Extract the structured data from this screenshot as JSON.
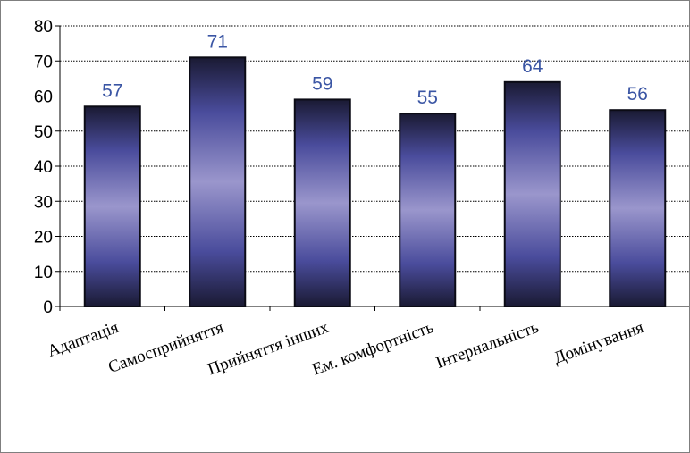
{
  "colors": {
    "bar_dark": "#1a1a33",
    "bar_mid": "#4a4c9c",
    "bar_light": "#9a96cc",
    "bar_edge": "#0b0b15",
    "data_label": "#3a55a4",
    "grid": "#000000",
    "frame_border": "#7f7f7f"
  },
  "chart_data": {
    "type": "bar",
    "categories": [
      "Адаптація",
      "Самосприйняття",
      "Прийняття інших",
      "Ем. комфортність",
      "Інтернальність",
      "Домінування"
    ],
    "values": [
      57,
      71,
      59,
      55,
      64,
      56
    ],
    "data_labels": [
      "57",
      "71",
      "59",
      "55",
      "64",
      "56"
    ],
    "y_ticks": [
      "0",
      "10",
      "20",
      "30",
      "40",
      "50",
      "60",
      "70",
      "80"
    ],
    "ylim": [
      0,
      80
    ],
    "title": "",
    "xlabel": "",
    "ylabel": "",
    "grid": true,
    "gridline_style": "dotted",
    "legend": "none",
    "category_label_rotation": "diagonal"
  }
}
